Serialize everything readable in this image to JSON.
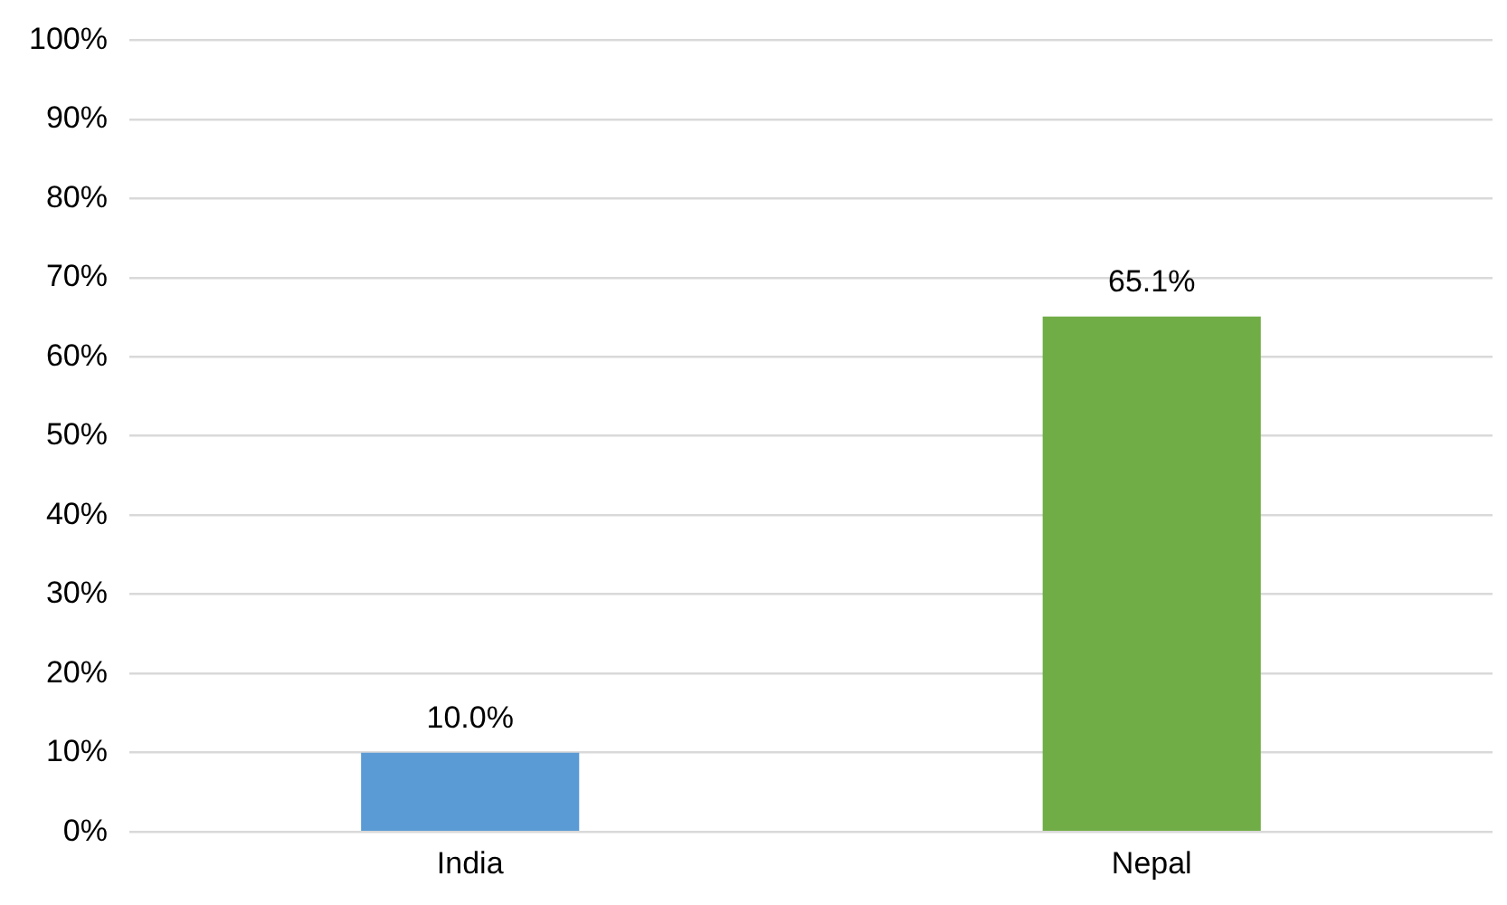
{
  "chart_data": {
    "type": "bar",
    "categories": [
      "India",
      "Nepal"
    ],
    "values": [
      10.0,
      65.1
    ],
    "colors": [
      "#5b9bd5",
      "#70ad47"
    ],
    "value_labels": [
      "10.0%",
      "65.1%"
    ],
    "ylim": [
      0,
      100
    ],
    "yticks": [
      {
        "value": 0,
        "label": "0%"
      },
      {
        "value": 10,
        "label": "10%"
      },
      {
        "value": 20,
        "label": "20%"
      },
      {
        "value": 30,
        "label": "30%"
      },
      {
        "value": 40,
        "label": "40%"
      },
      {
        "value": 50,
        "label": "50%"
      },
      {
        "value": 60,
        "label": "60%"
      },
      {
        "value": 70,
        "label": "70%"
      },
      {
        "value": 80,
        "label": "80%"
      },
      {
        "value": 90,
        "label": "90%"
      },
      {
        "value": 100,
        "label": "100%"
      }
    ],
    "grid": "y",
    "legend": false
  }
}
